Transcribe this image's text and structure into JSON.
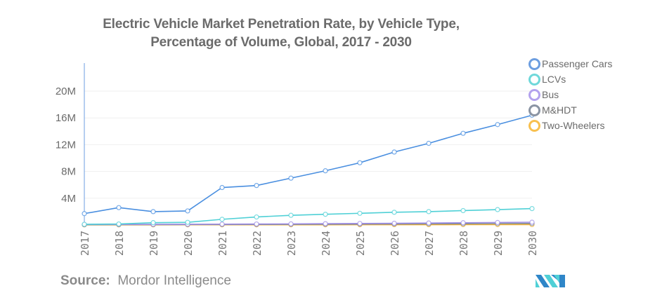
{
  "chart_data": {
    "type": "line",
    "title": "Electric Vehicle Market Penetration Rate, by Vehicle Type, Percentage of Volume, Global, 2017 - 2030",
    "title_lines": [
      "Electric Vehicle Market Penetration Rate, by Vehicle Type,",
      "Percentage of Volume, Global, 2017 - 2030"
    ],
    "xlabel": "",
    "ylabel": "",
    "x": [
      "2017",
      "2018",
      "2019",
      "2020",
      "2021",
      "2022",
      "2023",
      "2024",
      "2025",
      "2026",
      "2027",
      "2028",
      "2029",
      "2030"
    ],
    "ylim": [
      0,
      24000000
    ],
    "yticks": [
      4000000,
      8000000,
      12000000,
      16000000,
      20000000
    ],
    "ytick_labels": [
      "4M",
      "8M",
      "12M",
      "16M",
      "20M"
    ],
    "grid": true,
    "legend_position": "top-right",
    "series": [
      {
        "name": "Passenger Cars",
        "color": "#4a8fe0",
        "values": [
          1700000,
          2600000,
          2000000,
          2100000,
          5600000,
          5900000,
          7000000,
          8100000,
          9300000,
          10900000,
          12200000,
          13700000,
          15000000,
          16400000
        ]
      },
      {
        "name": "LCVs",
        "color": "#4fd0d6",
        "values": [
          100000,
          150000,
          350000,
          400000,
          850000,
          1200000,
          1450000,
          1600000,
          1750000,
          1900000,
          2000000,
          2150000,
          2300000,
          2450000
        ]
      },
      {
        "name": "Bus",
        "color": "#a08fe6",
        "values": [
          80000,
          90000,
          100000,
          110000,
          130000,
          150000,
          170000,
          200000,
          230000,
          260000,
          300000,
          340000,
          380000,
          420000
        ]
      },
      {
        "name": "M&HDT",
        "color": "#7f8894",
        "values": [
          50000,
          55000,
          60000,
          65000,
          75000,
          85000,
          100000,
          115000,
          130000,
          150000,
          170000,
          190000,
          210000,
          230000
        ]
      },
      {
        "name": "Two-Wheelers",
        "color": "#f5b433",
        "values": [
          20000,
          22000,
          24000,
          26000,
          28000,
          30000,
          33000,
          36000,
          40000,
          44000,
          48000,
          52000,
          56000,
          60000
        ]
      }
    ]
  },
  "legend": [
    {
      "label": "Passenger Cars",
      "color": "#6d9ee0"
    },
    {
      "label": "LCVs",
      "color": "#6fd8da"
    },
    {
      "label": "Bus",
      "color": "#b3a2ee"
    },
    {
      "label": "M&HDT",
      "color": "#8a94a3"
    },
    {
      "label": "Two-Wheelers",
      "color": "#f8c04f"
    }
  ],
  "source": {
    "label": "Source:",
    "value": "Mordor Intelligence"
  },
  "logo": {
    "name": "Mordor Intelligence logo",
    "colors": [
      "#2f86c8",
      "#4fd0d6"
    ]
  }
}
